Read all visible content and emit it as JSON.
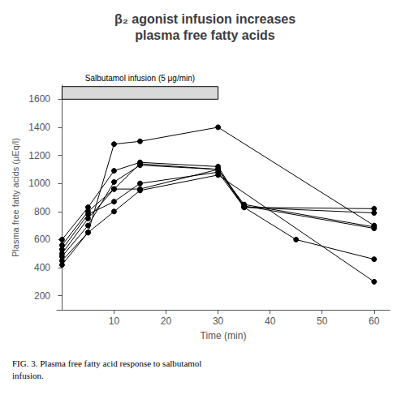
{
  "chart_data": {
    "type": "line",
    "title": "β₂ agonist infusion increases\nplasma free fatty acids",
    "xlabel": "Time (min)",
    "ylabel": "Plasma free fatty acids (μEq/l)",
    "x": [
      0,
      5,
      10,
      15,
      30,
      35,
      45,
      60
    ],
    "series": [
      {
        "color": "#000000",
        "values": [
          450,
          650,
          1280,
          1300,
          1400,
          null,
          null,
          700
        ]
      },
      {
        "color": "#000000",
        "values": [
          480,
          700,
          1010,
          1130,
          1100,
          840,
          null,
          680
        ]
      },
      {
        "color": "#000000",
        "values": [
          500,
          750,
          960,
          1140,
          1100,
          850,
          null,
          690
        ]
      },
      {
        "color": "#000000",
        "values": [
          530,
          780,
          870,
          1000,
          1080,
          830,
          null,
          820
        ]
      },
      {
        "color": "#000000",
        "values": [
          560,
          800,
          960,
          960,
          1100,
          830,
          600,
          460
        ]
      },
      {
        "color": "#000000",
        "values": [
          600,
          830,
          1090,
          1150,
          1120,
          830,
          null,
          790
        ]
      },
      {
        "color": "#000000",
        "values": [
          420,
          650,
          800,
          950,
          1060,
          null,
          null,
          300
        ]
      }
    ],
    "xlim": [
      -1,
      63
    ],
    "xticks": [
      10,
      20,
      30,
      40,
      50,
      60
    ],
    "ylim": [
      100,
      1700
    ],
    "yticks": [
      200,
      400,
      600,
      800,
      1000,
      1200,
      1400,
      1600
    ],
    "grid": false,
    "marker": "circle",
    "annotations": [
      {
        "text": "Salbutamol infusion (5 μg/min)",
        "x_start": 0,
        "x_end": 30
      },
      {
        "text": "FIG. 3. Plasma free fatty acid response to salbutamol\ninfusion."
      }
    ]
  }
}
